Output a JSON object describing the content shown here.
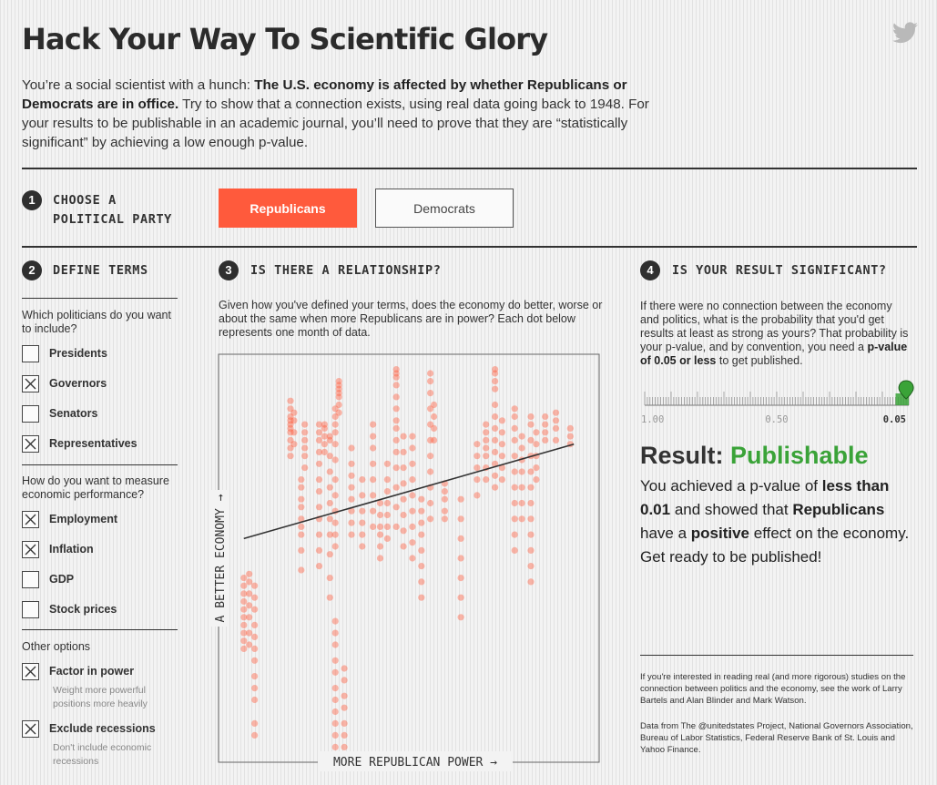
{
  "header": {
    "title": "Hack Your Way To Scientific Glory",
    "intro_lead": "You’re a social scientist with a hunch: ",
    "intro_bold": "The U.S. economy is affected by whether Republicans or Democrats are in office.",
    "intro_rest": " Try to show that a connection exists, using real data going back to 1948. For your results to be publishable in an academic journal, you’ll need to prove that they are “statistically significant” by achieving a low enough p-value."
  },
  "step1": {
    "number": "1",
    "label_line1": "CHOOSE A",
    "label_line2": "POLITICAL PARTY",
    "buttons": [
      {
        "label": "Republicans",
        "selected": true
      },
      {
        "label": "Democrats",
        "selected": false
      }
    ]
  },
  "step2": {
    "number": "2",
    "label": "DEFINE TERMS",
    "q_politicians": "Which politicians do you want to include?",
    "politicians": [
      {
        "label": "Presidents",
        "checked": false
      },
      {
        "label": "Governors",
        "checked": true
      },
      {
        "label": "Senators",
        "checked": false
      },
      {
        "label": "Representatives",
        "checked": true
      }
    ],
    "q_economy": "How do you want to measure economic performance?",
    "economy": [
      {
        "label": "Employment",
        "checked": true
      },
      {
        "label": "Inflation",
        "checked": true
      },
      {
        "label": "GDP",
        "checked": false
      },
      {
        "label": "Stock prices",
        "checked": false
      }
    ],
    "q_other": "Other options",
    "other": [
      {
        "label": "Factor in power",
        "checked": true,
        "sub": "Weight more powerful positions more heavily"
      },
      {
        "label": "Exclude recessions",
        "checked": true,
        "sub": "Don't include economic recessions"
      }
    ]
  },
  "step3": {
    "number": "3",
    "label": "IS THERE A RELATIONSHIP?",
    "description": "Given how you've defined your terms, does the economy do better, worse or about the same when more Republicans are in power? Each dot below represents one month of data."
  },
  "chart_data": {
    "type": "scatter",
    "xlabel": "MORE REPUBLICAN POWER →",
    "ylabel": "A BETTER ECONOMY →",
    "dot_color": "#ff5a3c",
    "trend_color": "#333333",
    "xlim": [
      0,
      100
    ],
    "ylim": [
      0,
      100
    ],
    "trendline": [
      [
        4,
        55
      ],
      [
        96,
        79
      ]
    ],
    "columns": [
      {
        "x": 4,
        "ys": [
          27,
          29,
          31,
          33,
          35,
          37,
          39,
          41,
          43,
          45
        ]
      },
      {
        "x": 5.5,
        "ys": [
          28,
          31,
          35,
          38,
          41,
          44,
          46
        ]
      },
      {
        "x": 7,
        "ys": [
          5,
          8,
          14,
          17,
          20,
          24,
          27,
          30,
          33,
          37,
          40,
          43
        ]
      },
      {
        "x": 17,
        "ys": [
          76,
          78,
          80,
          82,
          83,
          84,
          85,
          86,
          88,
          90
        ]
      },
      {
        "x": 18,
        "ys": [
          79,
          82,
          85,
          87
        ]
      },
      {
        "x": 20,
        "ys": [
          47,
          52,
          56,
          58,
          60,
          63,
          65,
          68,
          70
        ]
      },
      {
        "x": 21,
        "ys": [
          73,
          76,
          78,
          80,
          82,
          84
        ]
      },
      {
        "x": 25,
        "ys": [
          48,
          52,
          56,
          60,
          63,
          67,
          70,
          74,
          77,
          80,
          82,
          84
        ]
      },
      {
        "x": 26.5,
        "ys": [
          77,
          79,
          81,
          83,
          84
        ]
      },
      {
        "x": 28,
        "ys": [
          40,
          45,
          51,
          56,
          60,
          64,
          68,
          72,
          76,
          80,
          81
        ]
      },
      {
        "x": 29.5,
        "ys": [
          53,
          56,
          59,
          62,
          66,
          70,
          75,
          79,
          82,
          84,
          86,
          88
        ]
      },
      {
        "x": 30.5,
        "ys": [
          87,
          89,
          91,
          92,
          93,
          94,
          95
        ]
      },
      {
        "x": 29.5,
        "ys": [
          0,
          2,
          5,
          8,
          11,
          14,
          17,
          21,
          24,
          28,
          31,
          34
        ]
      },
      {
        "x": 32,
        "ys": [
          0,
          2,
          5,
          8,
          12,
          15,
          19,
          22
        ]
      },
      {
        "x": 34,
        "ys": [
          56,
          59,
          62,
          65,
          68,
          71,
          74,
          78
        ]
      },
      {
        "x": 37,
        "ys": [
          53,
          56,
          59,
          62,
          66,
          70
        ]
      },
      {
        "x": 40,
        "ys": [
          58,
          62,
          66,
          70,
          74,
          78,
          81,
          84
        ]
      },
      {
        "x": 42,
        "ys": [
          50,
          53,
          56,
          58,
          61,
          64
        ]
      },
      {
        "x": 44,
        "ys": [
          55,
          58,
          61,
          64,
          67,
          70,
          74
        ]
      },
      {
        "x": 46.5,
        "ys": [
          58,
          63,
          68,
          73,
          77,
          80,
          83,
          85,
          88,
          91,
          94,
          96,
          97,
          98
        ]
      },
      {
        "x": 48.5,
        "ys": [
          53,
          57,
          61,
          65,
          69,
          73,
          77,
          81
        ]
      },
      {
        "x": 51,
        "ys": [
          50,
          54,
          58,
          62,
          66,
          70,
          74,
          78,
          81
        ]
      },
      {
        "x": 53.5,
        "ys": [
          40,
          44,
          48,
          52,
          56,
          59,
          62,
          65
        ]
      },
      {
        "x": 56,
        "ys": [
          60,
          64,
          68,
          72,
          76,
          80,
          84,
          88,
          92,
          95,
          97
        ]
      },
      {
        "x": 57,
        "ys": [
          80,
          83,
          86,
          89
        ]
      },
      {
        "x": 60,
        "ys": [
          60,
          62,
          65,
          67,
          69
        ]
      },
      {
        "x": 64.5,
        "ys": [
          35,
          40,
          45,
          50,
          55,
          60,
          65
        ]
      },
      {
        "x": 69,
        "ys": [
          66,
          70,
          73,
          76,
          79
        ]
      },
      {
        "x": 71.5,
        "ys": [
          70,
          73,
          76,
          78,
          80,
          82,
          84
        ]
      },
      {
        "x": 74,
        "ys": [
          68,
          71,
          74,
          77,
          80,
          83,
          86,
          89,
          93,
          95,
          97,
          98
        ]
      },
      {
        "x": 76,
        "ys": [
          70,
          73,
          76,
          79,
          82,
          85
        ]
      },
      {
        "x": 79.5,
        "ys": [
          52,
          56,
          60,
          64,
          68,
          72,
          76,
          80,
          83,
          86,
          88
        ]
      },
      {
        "x": 81.5,
        "ys": [
          60,
          64,
          68,
          72,
          75,
          78,
          81
        ]
      },
      {
        "x": 84,
        "ys": [
          44,
          48,
          52,
          56,
          60,
          64,
          68,
          72,
          76,
          80,
          84,
          86
        ]
      },
      {
        "x": 85.5,
        "ys": [
          70,
          73,
          76,
          79,
          82
        ]
      },
      {
        "x": 88,
        "ys": [
          80,
          82,
          84,
          86
        ]
      },
      {
        "x": 91,
        "ys": [
          80,
          83,
          85,
          87
        ]
      },
      {
        "x": 95,
        "ys": [
          79,
          81,
          83
        ]
      }
    ]
  },
  "step4": {
    "number": "4",
    "label": "IS YOUR RESULT SIGNIFICANT?",
    "description_lead": "If there were no connection between the economy and politics, what is the probability that you'd get results at least as strong as yours? That probability is your p-value, and by convention, you need a ",
    "description_bold": "p-value of 0.05 or less",
    "description_end": " to get published.",
    "scale_labels": [
      "1.00",
      "0.50",
      "0.05"
    ],
    "p_value": 0.01,
    "marker_color": "#3aa338",
    "result_label": "Result: ",
    "result_value": "Publishable",
    "body": [
      {
        "text": "You achieved a p-value of ",
        "bold": false
      },
      {
        "text": "less than 0.01",
        "bold": true
      },
      {
        "text": " and showed that ",
        "bold": false
      },
      {
        "text": "Republicans",
        "bold": true
      },
      {
        "text": " have a ",
        "bold": false
      },
      {
        "text": "positive",
        "bold": true
      },
      {
        "text": " effect on the economy. Get ready to be published!",
        "bold": false
      }
    ],
    "note1": "If you're interested in reading real (and more rigorous) studies on the connection between politics and the economy, see the work of Larry Bartels and Alan Blinder and Mark Watson.",
    "note2": "Data from The @unitedstates Project, National Governors Association, Bureau of Labor Statistics, Federal Reserve Bank of St. Louis and Yahoo Finance."
  },
  "icons": {
    "share": "twitter-icon"
  }
}
